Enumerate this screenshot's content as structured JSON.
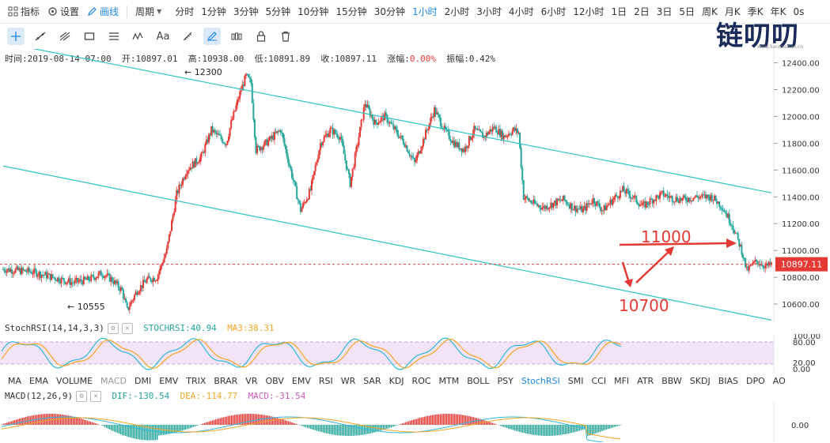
{
  "topbar": {
    "indicators_label": "指标",
    "settings_label": "设置",
    "draw_label": "画线",
    "period_label": "周期",
    "periods": [
      "分时",
      "1分钟",
      "3分钟",
      "5分钟",
      "10分钟",
      "15分钟",
      "30分钟",
      "1小时",
      "2小时",
      "3小时",
      "4小时",
      "6小时",
      "12小时",
      "1日",
      "2日",
      "3日",
      "5日",
      "周K",
      "月K",
      "季K",
      "年K",
      "0s"
    ],
    "active_period": "1小时"
  },
  "logo": {
    "text": "链叨叨",
    "url": "www.liandaodao.cn"
  },
  "info": {
    "time_label": "时间:",
    "time": "2019-08-14 07:00",
    "open_label": "开:",
    "open": "10897.01",
    "high_label": "高:",
    "high": "10938.00",
    "low_label": "低:",
    "low": "10891.89",
    "close_label": "收:",
    "close": "10897.11",
    "change_label": "涨幅:",
    "change": "0.00%",
    "amplitude_label": "振幅:",
    "amplitude": "0.42%"
  },
  "annotations": {
    "high_marker": "← 12300",
    "low_marker": "← 10555",
    "target_up": "11000",
    "target_down": "10700",
    "current_price": "10897.11"
  },
  "price_axis": {
    "ticks": [
      "12400.00",
      "12200.00",
      "12000.00",
      "11800.00",
      "11600.00",
      "11400.00",
      "11200.00",
      "11000.00",
      "10800.00",
      "10600.00"
    ]
  },
  "stochrsi": {
    "name": "StochRSI(14,14,3,3)",
    "value_label": "STOCHRSI:40.94",
    "ma_label": "MA3:38.31",
    "axis_ticks": [
      "100.00",
      "80.00",
      "20.00",
      "0.00"
    ]
  },
  "indicator_tabs": [
    "MA",
    "EMA",
    "VOLUME",
    "MACD",
    "DMI",
    "EMV",
    "TRIX",
    "BRAR",
    "VR",
    "OBV",
    "EMV",
    "RSI",
    "WR",
    "SAR",
    "KDJ",
    "ROC",
    "MTM",
    "BOLL",
    "PSY",
    "StochRSI",
    "SMI",
    "CCI",
    "MFI",
    "ATR",
    "BBW",
    "SKDJ",
    "BIAS",
    "DPO",
    "AO"
  ],
  "disabled_tab": "MACD",
  "active_tab": "StochRSI",
  "macd": {
    "name": "MACD(12,26,9)",
    "dif_label": "DIF:-130.54",
    "dea_label": "DEA:-114.77",
    "macd_label": "MACD:-31.54",
    "axis_ticks": [
      "0.00"
    ]
  },
  "colors": {
    "up": "#e53935",
    "down": "#26a69a",
    "channel": "#2ec4c4",
    "annotation": "#e53935",
    "accent": "#1e88e5"
  },
  "chart_data": {
    "type": "candlestick",
    "interval": "1小时",
    "ylim": [
      10500,
      12480
    ],
    "close_path": [
      [
        0,
        10860
      ],
      [
        6,
        10840
      ],
      [
        10,
        10800
      ],
      [
        14,
        10760
      ],
      [
        17,
        10780
      ],
      [
        20,
        10830
      ],
      [
        22,
        10780
      ],
      [
        24,
        10700
      ],
      [
        25,
        10555
      ],
      [
        27,
        10700
      ],
      [
        29,
        10780
      ],
      [
        31,
        10800
      ],
      [
        33,
        11000
      ],
      [
        35,
        11420
      ],
      [
        37,
        11600
      ],
      [
        40,
        11700
      ],
      [
        42,
        11900
      ],
      [
        45,
        11800
      ],
      [
        46,
        11950
      ],
      [
        48,
        12200
      ],
      [
        49,
        12300
      ],
      [
        50,
        12250
      ],
      [
        51,
        11750
      ],
      [
        53,
        11800
      ],
      [
        56,
        11900
      ],
      [
        58,
        11600
      ],
      [
        60,
        11300
      ],
      [
        62,
        11450
      ],
      [
        64,
        11800
      ],
      [
        66,
        11900
      ],
      [
        68,
        11850
      ],
      [
        70,
        11500
      ],
      [
        72,
        11900
      ],
      [
        73,
        12100
      ],
      [
        75,
        11950
      ],
      [
        77,
        12000
      ],
      [
        79,
        11900
      ],
      [
        81,
        11800
      ],
      [
        83,
        11650
      ],
      [
        85,
        11850
      ],
      [
        87,
        12050
      ],
      [
        89,
        11900
      ],
      [
        91,
        11800
      ],
      [
        93,
        11750
      ],
      [
        95,
        11900
      ],
      [
        97,
        11850
      ],
      [
        99,
        11920
      ],
      [
        101,
        11850
      ],
      [
        103,
        11900
      ],
      [
        104,
        11880
      ],
      [
        105,
        11400
      ],
      [
        107,
        11350
      ],
      [
        109,
        11320
      ],
      [
        111,
        11350
      ],
      [
        113,
        11380
      ],
      [
        115,
        11320
      ],
      [
        117,
        11300
      ],
      [
        119,
        11380
      ],
      [
        121,
        11300
      ],
      [
        123,
        11380
      ],
      [
        125,
        11450
      ],
      [
        127,
        11400
      ],
      [
        129,
        11330
      ],
      [
        131,
        11380
      ],
      [
        133,
        11420
      ],
      [
        135,
        11390
      ],
      [
        137,
        11380
      ],
      [
        140,
        11400
      ],
      [
        143,
        11400
      ],
      [
        145,
        11330
      ],
      [
        147,
        11200
      ],
      [
        149,
        11000
      ],
      [
        150,
        10850
      ],
      [
        152,
        10920
      ],
      [
        154,
        10880
      ],
      [
        155,
        10897
      ]
    ],
    "channel_upper": [
      [
        0,
        12550
      ],
      [
        155,
        11430
      ]
    ],
    "channel_lower": [
      [
        0,
        11630
      ],
      [
        155,
        10480
      ]
    ],
    "current_price": 10897.11
  }
}
